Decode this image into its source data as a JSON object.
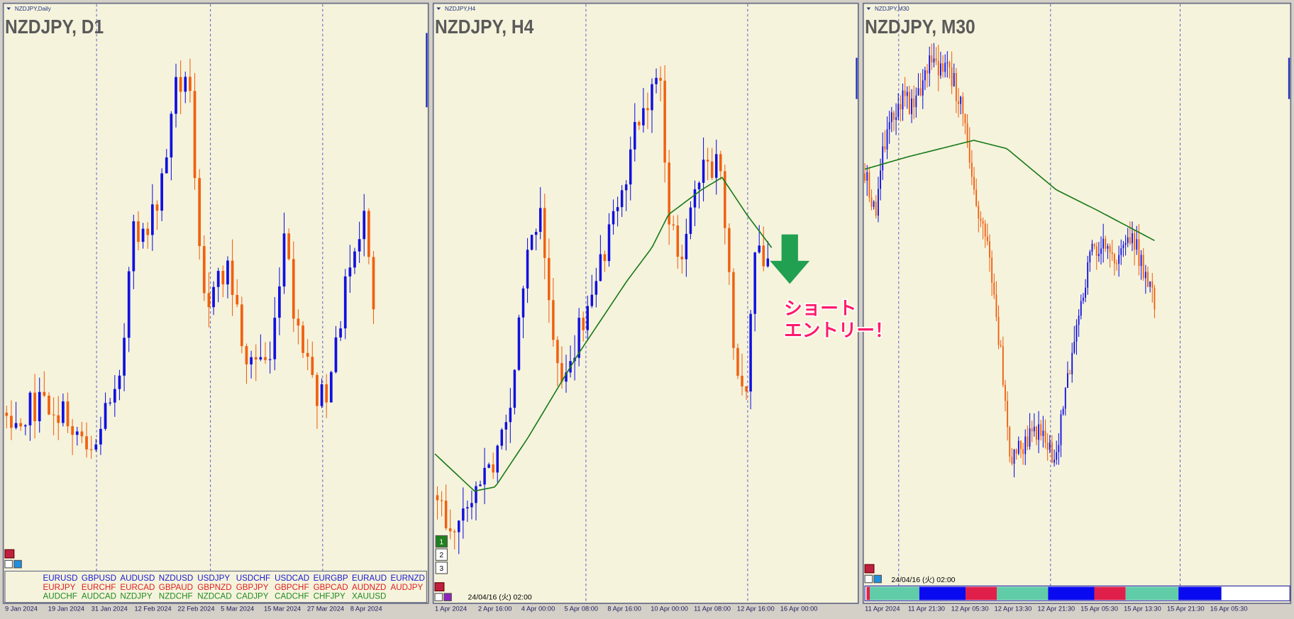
{
  "panels": [
    {
      "caption": "NZDJPY,Daily",
      "title": "NZDJPY, D1",
      "dates": [
        "9 Jan 2024",
        "19 Jan 2024",
        "31 Jan 2024",
        "12 Feb 2024",
        "22 Feb 2024",
        "5 Mar 2024",
        "15 Mar 2024",
        "27 Mar 2024",
        "8 Apr 2024"
      ]
    },
    {
      "caption": "NZDJPY,H4",
      "title": "NZDJPY, H4",
      "dates": [
        "1 Apr 2024",
        "2 Apr 16:00",
        "4 Apr 00:00",
        "5 Apr 08:00",
        "8 Apr 16:00",
        "10 Apr 00:00",
        "11 Apr 08:00",
        "12 Apr 16:00",
        "16 Apr 00:00"
      ],
      "timestamp": "24/04/16 (火) 02:00",
      "buttons": [
        "1",
        "2",
        "3"
      ],
      "annotation": [
        "ショート",
        "エントリー！"
      ]
    },
    {
      "caption": "NZDJPY,M30",
      "title": "NZDJPY, M30",
      "dates": [
        "11 Apr 2024",
        "11 Apr 21:30",
        "12 Apr 05:30",
        "12 Apr 13:30",
        "12 Apr 21:30",
        "15 Apr 05:30",
        "15 Apr 13:30",
        "15 Apr 21:30",
        "16 Apr 05:30"
      ],
      "timestamp": "24/04/16 (火) 02:00"
    }
  ],
  "currency_grid": [
    {
      "color": "#1a1ad0",
      "pairs": [
        "EURUSD",
        "GBPUSD",
        "AUDUSD",
        "NZDUSD",
        "USDJPY",
        "USDCHF",
        "USDCAD",
        "EURGBP",
        "EURAUD",
        "EURNZD"
      ]
    },
    {
      "color": "#e02020",
      "pairs": [
        "EURJPY",
        "EURCHF",
        "EURCAD",
        "GBPAUD",
        "GBPNZD",
        "GBPJPY",
        "GBPCHF",
        "GBPCAD",
        "AUDNZD",
        "AUDJPY"
      ]
    },
    {
      "color": "#208a20",
      "pairs": [
        "AUDCHF",
        "AUDCAD",
        "NZDJPY",
        "NZDCHF",
        "NZDCAD",
        "CADJPY",
        "CADCHF",
        "CHFJPY",
        "XAUUSD"
      ]
    }
  ]
}
